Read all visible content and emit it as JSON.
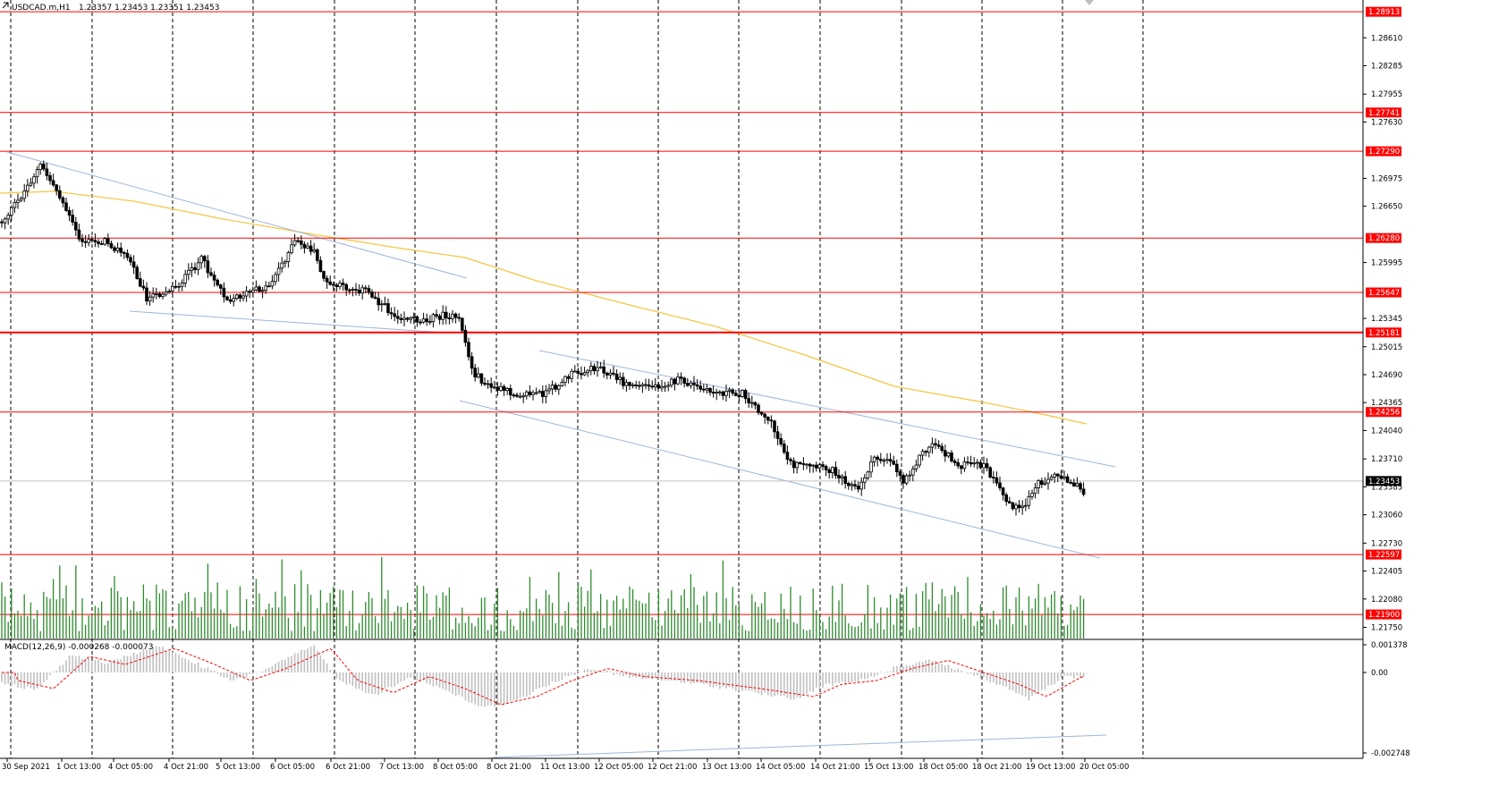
{
  "header": {
    "icon": "chart-arrow-icon",
    "symbol": "USDCAD.m,H1",
    "ohlc": "1.23357 1.23453 1.23351 1.23453"
  },
  "macd": {
    "label": "MACD(12,26,9) -0.000268 -0.000073",
    "scale_labels": [
      "0.001378",
      "0.00",
      "-0.002748"
    ]
  },
  "price_axis": {
    "labels": [
      "1.28610",
      "1.28285",
      "1.27955",
      "1.27630",
      "1.26975",
      "1.26650",
      "1.25995",
      "1.25345",
      "1.25015",
      "1.24690",
      "1.24365",
      "1.24040",
      "1.23710",
      "1.23385",
      "1.23060",
      "1.22730",
      "1.22405",
      "1.22080",
      "1.21750"
    ],
    "levels": [
      {
        "value": "1.28913",
        "color": "#ff0000"
      },
      {
        "value": "1.27741",
        "color": "#ff0000"
      },
      {
        "value": "1.27290",
        "color": "#ff0000"
      },
      {
        "value": "1.26280",
        "color": "#ff0000"
      },
      {
        "value": "1.25647",
        "color": "#ff0000"
      },
      {
        "value": "1.25181",
        "color": "#ff0000"
      },
      {
        "value": "1.24256",
        "color": "#ff0000"
      },
      {
        "value": "1.22597",
        "color": "#ff0000"
      },
      {
        "value": "1.21900",
        "color": "#ff0000"
      }
    ],
    "current": {
      "value": "1.23453",
      "color": "#000000"
    }
  },
  "time_axis": {
    "labels": [
      "30 Sep 2021",
      "1 Oct 13:00",
      "4 Oct 05:00",
      "4 Oct 21:00",
      "5 Oct 13:00",
      "6 Oct 05:00",
      "6 Oct 21:00",
      "7 Oct 13:00",
      "8 Oct 05:00",
      "8 Oct 21:00",
      "11 Oct 13:00",
      "12 Oct 05:00",
      "12 Oct 21:00",
      "13 Oct 13:00",
      "14 Oct 05:00",
      "14 Oct 21:00",
      "15 Oct 13:00",
      "18 Oct 05:00",
      "18 Oct 21:00",
      "19 Oct 13:00",
      "20 Oct 05:00"
    ]
  },
  "colors": {
    "level": "#ff0000",
    "grid": "#000000",
    "ma": "#f5c542",
    "channel": "#9fb6d9",
    "volume": "#2e8b2e",
    "histogram": "#c0c0c0",
    "signal": "#ff0000"
  }
}
